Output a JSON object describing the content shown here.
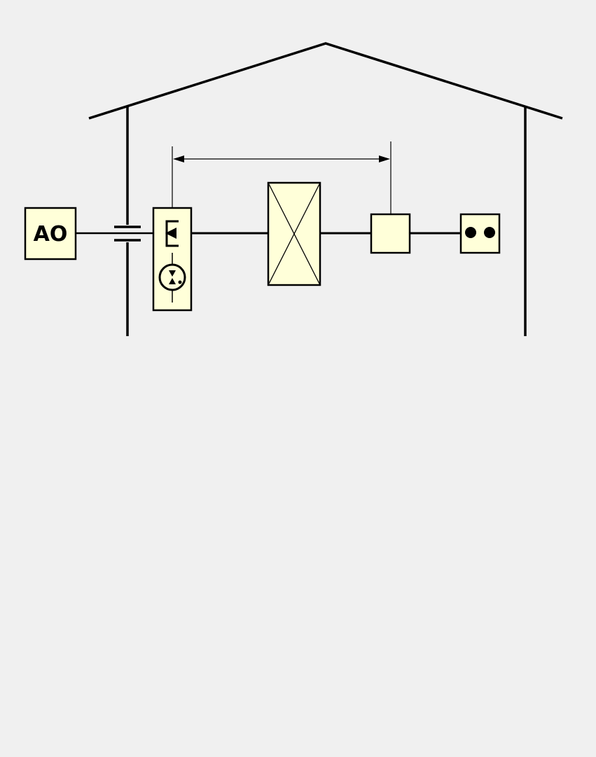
{
  "diagram": {
    "source_box_label": "AO"
  },
  "colors": {
    "background": "#f0f0f0",
    "box_fill": "#ffffd9",
    "stroke": "#000000"
  }
}
